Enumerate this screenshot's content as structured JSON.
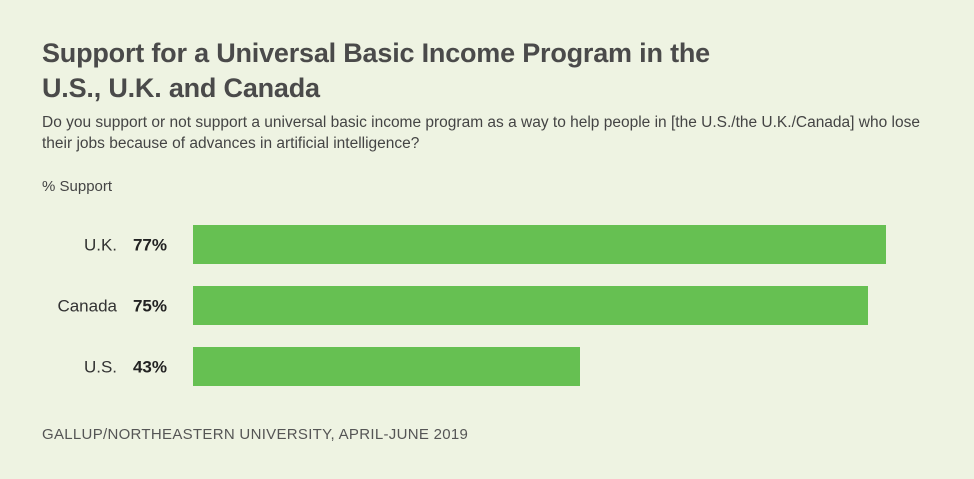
{
  "chart_data": {
    "type": "bar",
    "orientation": "horizontal",
    "title": "Support for a Universal Basic Income Program in the U.S., U.K. and Canada",
    "subtitle": "Do you support or not support a universal basic income program as a way to help people in [the U.S./the U.K./Canada] who lose their jobs because of advances in artificial intelligence?",
    "axis_unit_label": "% Support",
    "categories": [
      "U.K.",
      "Canada",
      "U.S."
    ],
    "values": [
      77,
      75,
      43
    ],
    "value_labels": [
      "77%",
      "75%",
      "43%"
    ],
    "xlim": [
      0,
      77
    ],
    "grid": false,
    "legend": "none",
    "bar_color": "#66c052",
    "source": "GALLUP/NORTHEASTERN UNIVERSITY, APRIL-JUNE 2019"
  },
  "colors": {
    "background": "#eef3e2",
    "bar": "#66c052",
    "title": "#4a4a4a",
    "text": "#333333"
  }
}
